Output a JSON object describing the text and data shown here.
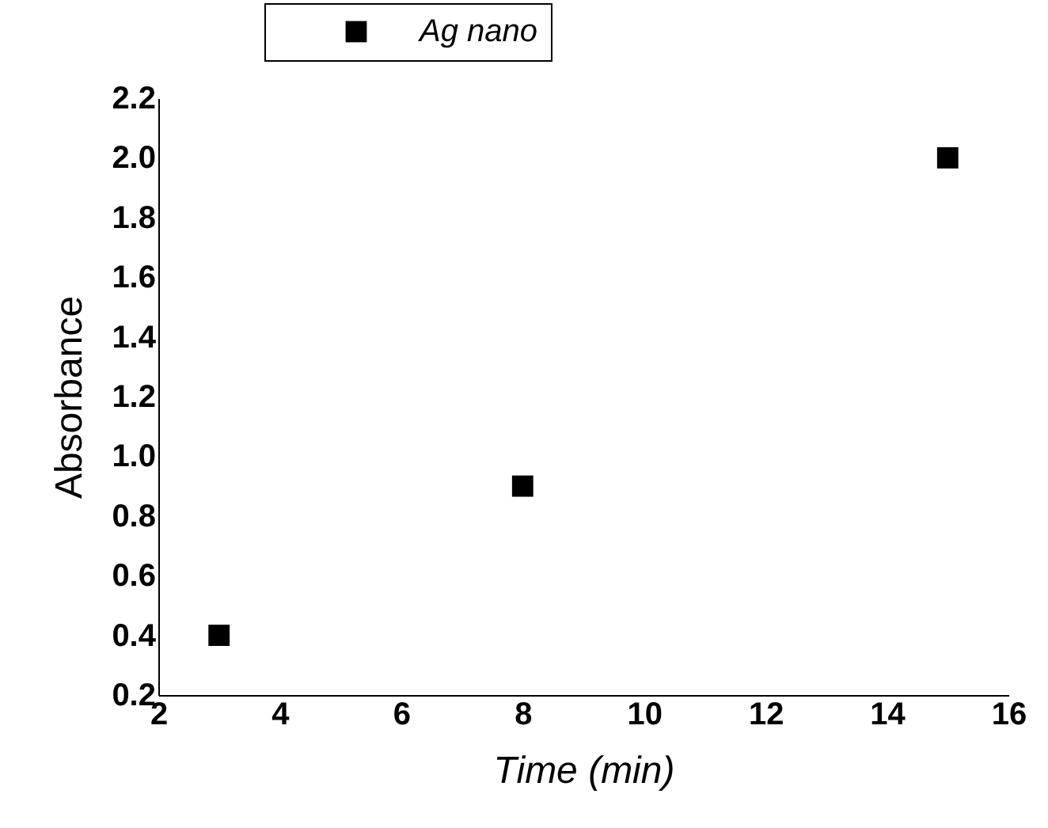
{
  "chart_data": {
    "type": "scatter",
    "xlabel": "Time (min)",
    "ylabel": "Absorbance",
    "x": [
      3,
      8,
      15
    ],
    "series": [
      {
        "name": "Ag nano",
        "color": "#000000",
        "values": [
          0.4,
          0.9,
          2.0
        ]
      }
    ],
    "xlim": [
      2,
      16
    ],
    "xticks": [
      2,
      4,
      6,
      8,
      10,
      12,
      14,
      16
    ],
    "ylim": [
      0.2,
      2.2
    ],
    "yticks": [
      0.2,
      0.4,
      0.6,
      0.8,
      {
        "value": 1,
        "label": "1.0"
      },
      1.2,
      1.4,
      1.6,
      1.8,
      {
        "value": 2,
        "label": "2.0"
      },
      2.2
    ],
    "marker": "square",
    "grid": false,
    "legend": "top"
  }
}
